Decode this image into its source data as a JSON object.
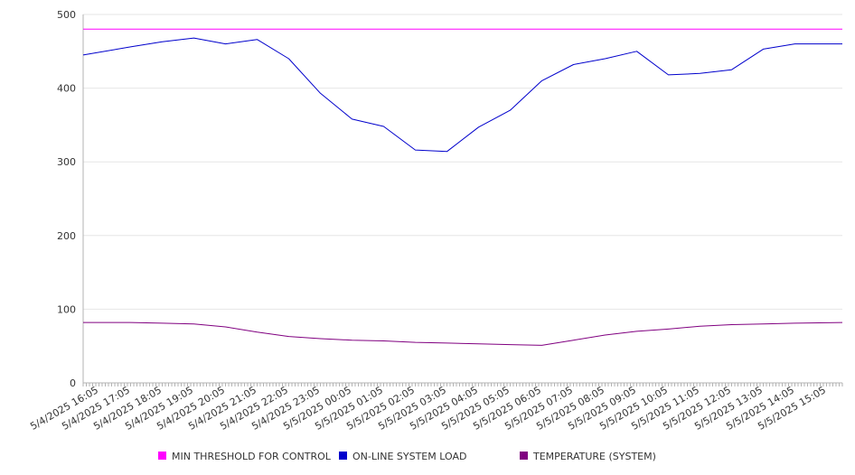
{
  "colors": {
    "threshold": "#ff00ff",
    "load": "#0000cc",
    "temperature": "#800080",
    "grid": "#e6e6e6",
    "axis": "#b3b3b3",
    "background": "#ffffff"
  },
  "chart_data": {
    "type": "line",
    "title": "",
    "xlabel": "",
    "ylabel": "",
    "ylim": [
      0,
      500
    ],
    "yticks": [
      0,
      100,
      200,
      300,
      400,
      500
    ],
    "grid": true,
    "legend_position": "bottom",
    "x": [
      "5/4/2025 16:05",
      "5/4/2025 17:05",
      "5/4/2025 18:05",
      "5/4/2025 19:05",
      "5/4/2025 20:05",
      "5/4/2025 21:05",
      "5/4/2025 22:05",
      "5/4/2025 23:05",
      "5/5/2025 00:05",
      "5/5/2025 01:05",
      "5/5/2025 02:05",
      "5/5/2025 03:05",
      "5/5/2025 04:05",
      "5/5/2025 05:05",
      "5/5/2025 06:05",
      "5/5/2025 07:05",
      "5/5/2025 08:05",
      "5/5/2025 09:05",
      "5/5/2025 10:05",
      "5/5/2025 11:05",
      "5/5/2025 12:05",
      "5/5/2025 13:05",
      "5/5/2025 14:05",
      "5/5/2025 15:05"
    ],
    "series": [
      {
        "name": "MIN THRESHOLD FOR CONTROL",
        "color_key": "threshold",
        "values": [
          480,
          480,
          480,
          480,
          480,
          480,
          480,
          480,
          480,
          480,
          480,
          480,
          480,
          480,
          480,
          480,
          480,
          480,
          480,
          480,
          480,
          480,
          480,
          480
        ]
      },
      {
        "name": "ON-LINE SYSTEM LOAD",
        "color_key": "load",
        "values": [
          445,
          456,
          463,
          468,
          460,
          466,
          440,
          393,
          358,
          348,
          316,
          314,
          347,
          370,
          410,
          432,
          440,
          450,
          418,
          420,
          425,
          453,
          460,
          460
        ]
      },
      {
        "name": "TEMPERATURE (SYSTEM)",
        "color_key": "temperature",
        "values": [
          82,
          82,
          81,
          80,
          76,
          69,
          63,
          60,
          58,
          57,
          55,
          54,
          53,
          52,
          51,
          58,
          65,
          70,
          73,
          77,
          79,
          80,
          81,
          82
        ]
      }
    ]
  }
}
